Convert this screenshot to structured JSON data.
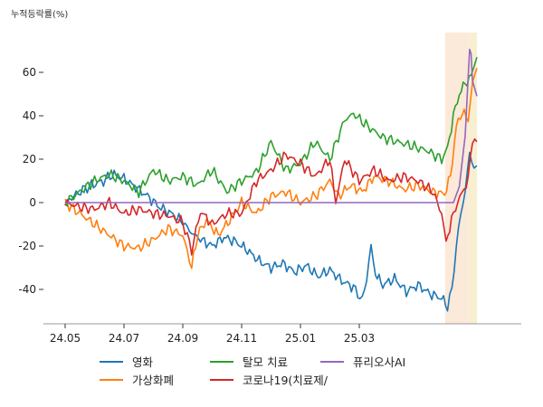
{
  "chart_data": {
    "type": "line",
    "title": "",
    "ylabel": "누적등락률(%)",
    "xlabel": "",
    "x_start": "24.05",
    "x_end": "25.06",
    "x_ticks": [
      "24.05",
      "24.07",
      "24.09",
      "24.11",
      "25.01",
      "25.03"
    ],
    "y_ticks": [
      -40,
      -20,
      0,
      20,
      40,
      60
    ],
    "ylim": [
      -55,
      78
    ],
    "grid": false,
    "legend_position": "bottom",
    "highlights": [
      {
        "from": 12.92,
        "to": 13.7,
        "color": "#fbe9d9"
      },
      {
        "from": 13.7,
        "to": 14.0,
        "color": "#f8efd2"
      }
    ],
    "series": [
      {
        "name": "영화",
        "color": "#1f77b4",
        "points": [
          [
            0,
            0
          ],
          [
            0.3,
            3
          ],
          [
            0.6,
            6
          ],
          [
            0.9,
            8
          ],
          [
            1.3,
            10
          ],
          [
            1.6,
            13
          ],
          [
            2.0,
            11
          ],
          [
            2.4,
            7
          ],
          [
            2.8,
            3
          ],
          [
            3.2,
            -2
          ],
          [
            3.6,
            -5
          ],
          [
            4.0,
            -9
          ],
          [
            4.3,
            -14
          ],
          [
            4.6,
            -17
          ],
          [
            5.0,
            -20
          ],
          [
            5.4,
            -16
          ],
          [
            5.8,
            -18
          ],
          [
            6.2,
            -22
          ],
          [
            6.6,
            -27
          ],
          [
            7.0,
            -30
          ],
          [
            7.4,
            -28
          ],
          [
            7.8,
            -32
          ],
          [
            8.2,
            -29
          ],
          [
            8.6,
            -34
          ],
          [
            9.0,
            -31
          ],
          [
            9.4,
            -36
          ],
          [
            9.8,
            -39
          ],
          [
            10.1,
            -45
          ],
          [
            10.25,
            -35
          ],
          [
            10.4,
            -20
          ],
          [
            10.55,
            -33
          ],
          [
            10.8,
            -38
          ],
          [
            11.2,
            -35
          ],
          [
            11.6,
            -41
          ],
          [
            12.0,
            -38
          ],
          [
            12.4,
            -42
          ],
          [
            12.8,
            -44
          ],
          [
            13.0,
            -48
          ],
          [
            13.15,
            -40
          ],
          [
            13.3,
            -20
          ],
          [
            13.45,
            -5
          ],
          [
            13.6,
            5
          ],
          [
            13.75,
            23
          ],
          [
            13.9,
            16
          ],
          [
            14.0,
            17
          ]
        ]
      },
      {
        "name": "가상화폐",
        "color": "#ff7f0e",
        "points": [
          [
            0,
            0
          ],
          [
            0.5,
            -5
          ],
          [
            1.0,
            -10
          ],
          [
            1.5,
            -15
          ],
          [
            2.0,
            -20
          ],
          [
            2.5,
            -21
          ],
          [
            3.0,
            -17
          ],
          [
            3.5,
            -12
          ],
          [
            4.0,
            -15
          ],
          [
            4.3,
            -30
          ],
          [
            4.5,
            -15
          ],
          [
            4.8,
            -8
          ],
          [
            5.2,
            -15
          ],
          [
            5.6,
            -8
          ],
          [
            6.0,
            0
          ],
          [
            6.5,
            -5
          ],
          [
            7.0,
            3
          ],
          [
            7.5,
            5
          ],
          [
            8.0,
            0
          ],
          [
            8.5,
            3
          ],
          [
            9.0,
            10
          ],
          [
            9.3,
            3
          ],
          [
            9.7,
            8
          ],
          [
            10.1,
            5
          ],
          [
            10.5,
            12
          ],
          [
            11.0,
            10
          ],
          [
            11.5,
            6
          ],
          [
            12.0,
            8
          ],
          [
            12.5,
            5
          ],
          [
            12.9,
            4
          ],
          [
            13.1,
            12
          ],
          [
            13.3,
            35
          ],
          [
            13.5,
            42
          ],
          [
            13.7,
            38
          ],
          [
            13.85,
            55
          ],
          [
            14.0,
            62
          ]
        ]
      },
      {
        "name": "탈모 치료",
        "color": "#2ca02c",
        "points": [
          [
            0,
            0
          ],
          [
            0.5,
            5
          ],
          [
            1.0,
            10
          ],
          [
            1.5,
            13
          ],
          [
            2.0,
            10
          ],
          [
            2.5,
            5
          ],
          [
            3.0,
            15
          ],
          [
            3.5,
            10
          ],
          [
            4.0,
            12
          ],
          [
            4.5,
            8
          ],
          [
            5.0,
            15
          ],
          [
            5.5,
            5
          ],
          [
            6.0,
            10
          ],
          [
            6.5,
            14
          ],
          [
            7.0,
            28
          ],
          [
            7.5,
            15
          ],
          [
            8.0,
            18
          ],
          [
            8.5,
            28
          ],
          [
            9.0,
            20
          ],
          [
            9.5,
            38
          ],
          [
            9.8,
            41
          ],
          [
            10.3,
            35
          ],
          [
            10.8,
            30
          ],
          [
            11.3,
            28
          ],
          [
            11.8,
            26
          ],
          [
            12.3,
            24
          ],
          [
            12.8,
            20
          ],
          [
            13.0,
            25
          ],
          [
            13.2,
            40
          ],
          [
            13.4,
            50
          ],
          [
            13.6,
            55
          ],
          [
            13.8,
            58
          ],
          [
            13.9,
            65
          ],
          [
            14.0,
            67
          ]
        ]
      },
      {
        "name": "코로나19(치료제/",
        "color": "#d62728",
        "points": [
          [
            0,
            0
          ],
          [
            0.5,
            -2
          ],
          [
            1.0,
            -3
          ],
          [
            1.5,
            0
          ],
          [
            2.0,
            -5
          ],
          [
            2.5,
            -3
          ],
          [
            3.0,
            -5
          ],
          [
            3.5,
            -6
          ],
          [
            4.0,
            -9
          ],
          [
            4.3,
            -22
          ],
          [
            4.6,
            -4
          ],
          [
            5.0,
            -10
          ],
          [
            5.5,
            -5
          ],
          [
            6.0,
            -5
          ],
          [
            6.5,
            10
          ],
          [
            7.0,
            15
          ],
          [
            7.5,
            22
          ],
          [
            8.0,
            18
          ],
          [
            8.5,
            12
          ],
          [
            9.0,
            20
          ],
          [
            9.2,
            0
          ],
          [
            9.5,
            20
          ],
          [
            10.0,
            10
          ],
          [
            10.5,
            15
          ],
          [
            11.0,
            10
          ],
          [
            11.5,
            12
          ],
          [
            12.0,
            10
          ],
          [
            12.5,
            5
          ],
          [
            12.8,
            -5
          ],
          [
            12.95,
            -18
          ],
          [
            13.2,
            -5
          ],
          [
            13.5,
            5
          ],
          [
            13.7,
            10
          ],
          [
            13.85,
            30
          ],
          [
            14.0,
            28
          ]
        ]
      },
      {
        "name": "퓨리오사AI",
        "color": "#9467bd",
        "points": [
          [
            0,
            0
          ],
          [
            13.2,
            0
          ],
          [
            13.4,
            5
          ],
          [
            13.6,
            30
          ],
          [
            13.75,
            71
          ],
          [
            13.8,
            71
          ],
          [
            13.85,
            55
          ],
          [
            14.0,
            49
          ]
        ]
      }
    ]
  }
}
